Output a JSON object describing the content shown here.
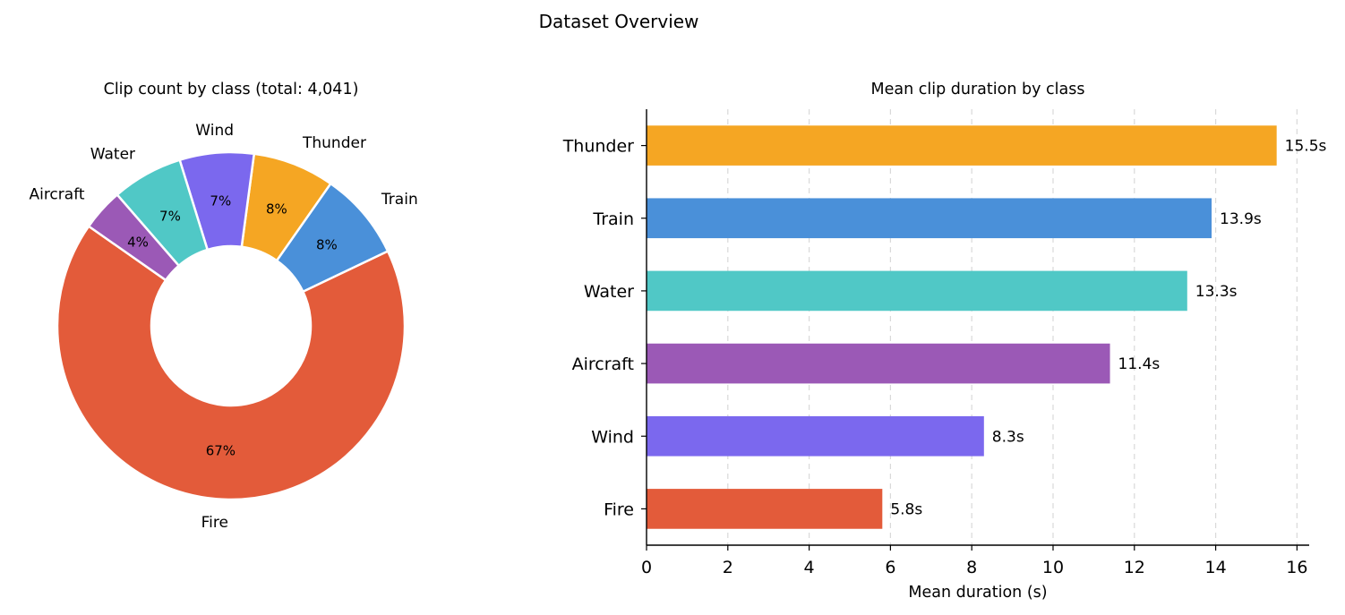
{
  "figure_title": "Dataset Overview",
  "chart_data": [
    {
      "type": "pie",
      "title": "Clip count by class (total: 4,041)",
      "labels": [
        "Fire",
        "Train",
        "Thunder",
        "Wind",
        "Water",
        "Aircraft"
      ],
      "percent_labels": [
        "67%",
        "8%",
        "8%",
        "7%",
        "7%",
        "4%"
      ],
      "values": [
        66.8,
        8.2,
        7.6,
        6.9,
        6.6,
        3.9
      ],
      "colors": [
        "#E35B3A",
        "#4A90D9",
        "#F5A623",
        "#7B68EE",
        "#50C8C6",
        "#9B59B6"
      ],
      "donut": true
    },
    {
      "type": "bar",
      "orientation": "horizontal",
      "title": "Mean clip duration by class",
      "categories": [
        "Thunder",
        "Train",
        "Water",
        "Aircraft",
        "Wind",
        "Fire"
      ],
      "values": [
        15.5,
        13.9,
        13.3,
        11.4,
        8.3,
        5.8
      ],
      "value_labels": [
        "15.5s",
        "13.9s",
        "13.3s",
        "11.4s",
        "8.3s",
        "5.8s"
      ],
      "colors": [
        "#F5A623",
        "#4A90D9",
        "#50C8C6",
        "#9B59B6",
        "#7B68EE",
        "#E35B3A"
      ],
      "xlabel": "Mean duration (s)",
      "ylabel": "",
      "xlim": [
        0,
        16.3
      ],
      "xticks": [
        "0",
        "2",
        "4",
        "6",
        "8",
        "10",
        "12",
        "14",
        "16"
      ],
      "grid": "x-dashed"
    }
  ]
}
